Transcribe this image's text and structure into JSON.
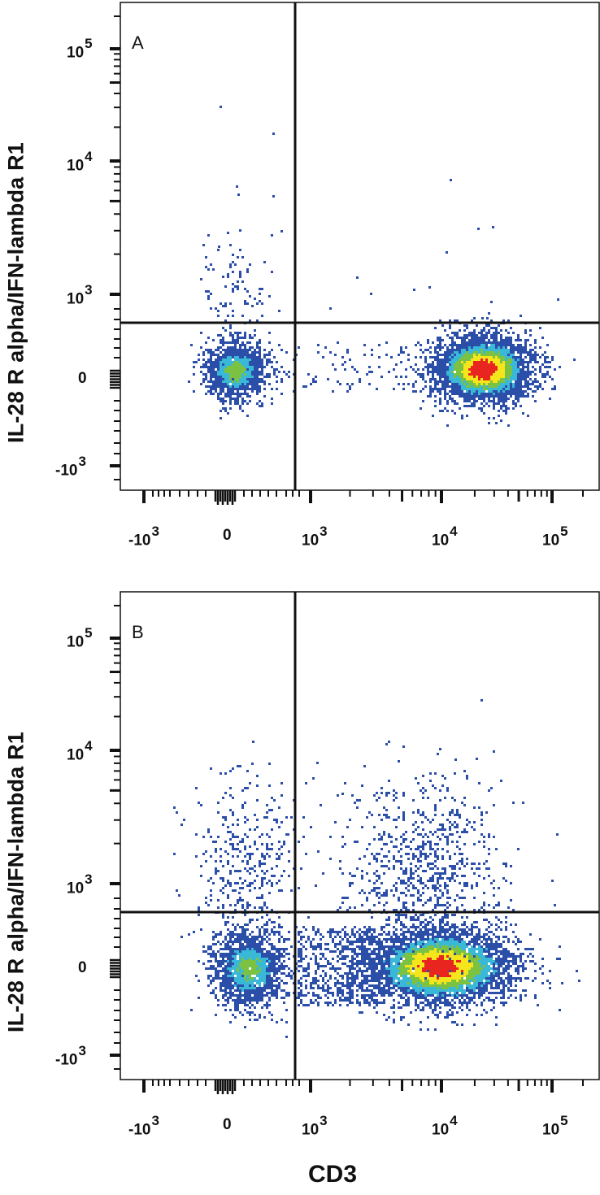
{
  "chart_data": [
    {
      "type": "scatter",
      "subtype": "flow-cytometry-density-dot-plot",
      "panel": "A",
      "xlabel": "CD3",
      "ylabel": "IL-28 R alpha/IFN-lambda R1",
      "x_scale": "biexponential",
      "y_scale": "biexponential",
      "x_ticks": [
        "-10^3",
        "0",
        "10^3",
        "10^4",
        "10^5"
      ],
      "y_ticks": [
        "-10^3",
        "0",
        "10^3",
        "10^4",
        "10^5"
      ],
      "quadrant_gates": {
        "x": 700,
        "y": 600
      },
      "populations": [
        {
          "name": "CD3- IL-28Ra-",
          "x_center": 50,
          "y_center": 0,
          "density": "medium",
          "peak_color": "green"
        },
        {
          "name": "CD3+ IL-28Ra-",
          "x_center": 22000,
          "y_center": 0,
          "density": "high",
          "peak_color": "red"
        },
        {
          "name": "CD3- IL-28Ra+ tail",
          "x_center": 100,
          "y_center": 1500,
          "density": "sparse",
          "peak_color": "blue"
        }
      ],
      "grid": false,
      "legend": null
    },
    {
      "type": "scatter",
      "subtype": "flow-cytometry-density-dot-plot",
      "panel": "B",
      "xlabel": "CD3",
      "ylabel": "IL-28 R alpha/IFN-lambda R1",
      "x_scale": "biexponential",
      "y_scale": "biexponential",
      "x_ticks": [
        "-10^3",
        "0",
        "10^3",
        "10^4",
        "10^5"
      ],
      "y_ticks": [
        "-10^3",
        "0",
        "10^3",
        "10^4",
        "10^5"
      ],
      "quadrant_gates": {
        "x": 700,
        "y": 600
      },
      "populations": [
        {
          "name": "CD3- IL-28Ra-",
          "x_center": 300,
          "y_center": 0,
          "density": "medium",
          "peak_color": "green"
        },
        {
          "name": "CD3+ IL-28Ra-",
          "x_center": 9000,
          "y_center": 0,
          "density": "high",
          "peak_color": "red"
        },
        {
          "name": "CD3+ IL-28Ra+",
          "x_center": 8000,
          "y_center": 1500,
          "density": "sparse",
          "peak_color": "blue"
        },
        {
          "name": "CD3- IL-28Ra+",
          "x_center": 250,
          "y_center": 1500,
          "density": "sparse",
          "peak_color": "blue"
        }
      ],
      "grid": false,
      "legend": null
    }
  ],
  "figure": {
    "panels": [
      {
        "letter": "A",
        "ylabel": "IL-28 R alpha/IFN-lambda R1",
        "y_tick_labels": [
          {
            "base": "10",
            "exp": "5"
          },
          {
            "base": "10",
            "exp": "4"
          },
          {
            "base": "10",
            "exp": "3"
          },
          {
            "base": "0",
            "exp": ""
          },
          {
            "base": "-10",
            "exp": "3"
          }
        ],
        "x_tick_labels": [
          {
            "base": "-10",
            "exp": "3"
          },
          {
            "base": "0",
            "exp": ""
          },
          {
            "base": "10",
            "exp": "3"
          },
          {
            "base": "10",
            "exp": "4"
          },
          {
            "base": "10",
            "exp": "5"
          }
        ]
      },
      {
        "letter": "B",
        "ylabel": "IL-28 R alpha/IFN-lambda R1",
        "y_tick_labels": [
          {
            "base": "10",
            "exp": "5"
          },
          {
            "base": "10",
            "exp": "4"
          },
          {
            "base": "10",
            "exp": "3"
          },
          {
            "base": "0",
            "exp": ""
          },
          {
            "base": "-10",
            "exp": "3"
          }
        ],
        "x_tick_labels": [
          {
            "base": "-10",
            "exp": "3"
          },
          {
            "base": "0",
            "exp": ""
          },
          {
            "base": "10",
            "exp": "3"
          },
          {
            "base": "10",
            "exp": "4"
          },
          {
            "base": "10",
            "exp": "5"
          }
        ]
      }
    ],
    "xlabel": "CD3",
    "colors": {
      "low": "#2b4ea8",
      "mid_low": "#39b8d8",
      "mid": "#7cc242",
      "mid_high": "#f5e51b",
      "high": "#e8261f",
      "axis": "#111111"
    }
  }
}
